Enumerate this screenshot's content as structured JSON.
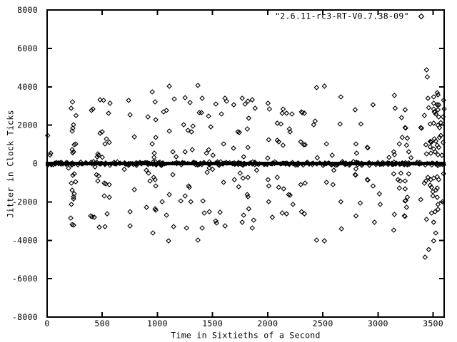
{
  "colors": {
    "background": "#ffffff",
    "foreground": "#000000"
  },
  "chart_data": {
    "type": "scatter",
    "title": "",
    "legend_label": "\"2.6.11-rc3-RT-V0.7.38-09\"",
    "legend_position": "top-right",
    "xlabel": "Time in Sixtieths of a Second",
    "ylabel": "Jitter in Clock Ticks",
    "xlim": [
      0,
      3600
    ],
    "ylim": [
      -8000,
      8000
    ],
    "x_ticks": [
      0,
      500,
      1000,
      1500,
      2000,
      2500,
      3000,
      3500
    ],
    "y_ticks": [
      -8000,
      -6000,
      -4000,
      -2000,
      0,
      2000,
      4000,
      6000,
      8000
    ],
    "grid": false,
    "marker": "open-diamond",
    "zero_band": {
      "y": 0,
      "x_range": [
        0,
        3600
      ],
      "approx_half_width": 150,
      "jitter_count": 400,
      "description": "extremely dense cluster of points at jitter ~0 forming a solid black band across the full time range"
    },
    "points": [
      [
        5,
        1460
      ],
      [
        26,
        440
      ],
      [
        32,
        540
      ],
      [
        194,
        -240
      ],
      [
        230,
        3210
      ],
      [
        218,
        2880
      ],
      [
        262,
        2500
      ],
      [
        239,
        2020
      ],
      [
        233,
        1840
      ],
      [
        227,
        1690
      ],
      [
        259,
        1020
      ],
      [
        246,
        980
      ],
      [
        227,
        720
      ],
      [
        240,
        610
      ],
      [
        232,
        560
      ],
      [
        233,
        -610
      ],
      [
        246,
        -540
      ],
      [
        220,
        -1020
      ],
      [
        259,
        -950
      ],
      [
        227,
        -1390
      ],
      [
        246,
        -1580
      ],
      [
        240,
        -1730
      ],
      [
        240,
        -1840
      ],
      [
        220,
        -2130
      ],
      [
        214,
        -2840
      ],
      [
        227,
        -3180
      ],
      [
        240,
        -3210
      ],
      [
        402,
        2770
      ],
      [
        415,
        2840
      ],
      [
        480,
        3320
      ],
      [
        512,
        3290
      ],
      [
        570,
        3140
      ],
      [
        557,
        2620
      ],
      [
        480,
        1580
      ],
      [
        499,
        1650
      ],
      [
        538,
        1280
      ],
      [
        525,
        1020
      ],
      [
        564,
        1100
      ],
      [
        460,
        500
      ],
      [
        454,
        350
      ],
      [
        500,
        330
      ],
      [
        434,
        -170
      ],
      [
        466,
        430
      ],
      [
        447,
        -580
      ],
      [
        467,
        -650
      ],
      [
        460,
        -910
      ],
      [
        518,
        -1020
      ],
      [
        531,
        -1060
      ],
      [
        564,
        -1100
      ],
      [
        518,
        -1690
      ],
      [
        564,
        -1760
      ],
      [
        395,
        -2730
      ],
      [
        408,
        -2770
      ],
      [
        428,
        -2800
      ],
      [
        544,
        -2620
      ],
      [
        473,
        -3320
      ],
      [
        525,
        -3290
      ],
      [
        739,
        3290
      ],
      [
        752,
        2540
      ],
      [
        791,
        1390
      ],
      [
        700,
        -300
      ],
      [
        791,
        -1360
      ],
      [
        752,
        -2510
      ],
      [
        752,
        -3250
      ],
      [
        953,
        3730
      ],
      [
        979,
        3210
      ],
      [
        914,
        2430
      ],
      [
        985,
        2280
      ],
      [
        985,
        1360
      ],
      [
        953,
        1020
      ],
      [
        972,
        540
      ],
      [
        970,
        320
      ],
      [
        900,
        -350
      ],
      [
        920,
        -500
      ],
      [
        933,
        -910
      ],
      [
        966,
        -720
      ],
      [
        979,
        -840
      ],
      [
        985,
        -1170
      ],
      [
        901,
        -2280
      ],
      [
        979,
        -2360
      ],
      [
        985,
        -2430
      ],
      [
        959,
        -3620
      ],
      [
        1108,
        4030
      ],
      [
        1153,
        3360
      ],
      [
        1082,
        2770
      ],
      [
        1056,
        2690
      ],
      [
        1108,
        1690
      ],
      [
        1140,
        610
      ],
      [
        1170,
        350
      ],
      [
        1043,
        -1990
      ],
      [
        1082,
        -2690
      ],
      [
        1108,
        -1620
      ],
      [
        1140,
        -580
      ],
      [
        1147,
        -3290
      ],
      [
        1101,
        -4030
      ],
      [
        1251,
        3430
      ],
      [
        1296,
        3180
      ],
      [
        1322,
        1950
      ],
      [
        1238,
        2020
      ],
      [
        1277,
        1730
      ],
      [
        1309,
        1650
      ],
      [
        1251,
        610
      ],
      [
        1316,
        720
      ],
      [
        1212,
        -1950
      ],
      [
        1251,
        -1690
      ],
      [
        1283,
        -1170
      ],
      [
        1290,
        -1240
      ],
      [
        1303,
        -1990
      ],
      [
        1264,
        -3360
      ],
      [
        1367,
        4070
      ],
      [
        1406,
        3400
      ],
      [
        1380,
        2650
      ],
      [
        1400,
        2650
      ],
      [
        1464,
        2470
      ],
      [
        1484,
        1910
      ],
      [
        1530,
        3100
      ],
      [
        1581,
        2580
      ],
      [
        1613,
        3400
      ],
      [
        1627,
        3250
      ],
      [
        1600,
        1020
      ],
      [
        1465,
        720
      ],
      [
        1504,
        430
      ],
      [
        1445,
        540
      ],
      [
        1470,
        -230
      ],
      [
        1500,
        -300
      ],
      [
        1367,
        -3990
      ],
      [
        1406,
        -3360
      ],
      [
        1413,
        -1950
      ],
      [
        1425,
        -2580
      ],
      [
        1451,
        -460
      ],
      [
        1471,
        -2510
      ],
      [
        1529,
        -2990
      ],
      [
        1536,
        -3100
      ],
      [
        1568,
        -2540
      ],
      [
        1600,
        -980
      ],
      [
        1613,
        -3250
      ],
      [
        1692,
        3060
      ],
      [
        1769,
        3400
      ],
      [
        1795,
        3100
      ],
      [
        1821,
        3250
      ],
      [
        1860,
        3320
      ],
      [
        1886,
        2880
      ],
      [
        1828,
        2360
      ],
      [
        1743,
        1620
      ],
      [
        1815,
        1800
      ],
      [
        1821,
        840
      ],
      [
        1690,
        800
      ],
      [
        1730,
        1650
      ],
      [
        1782,
        350
      ],
      [
        1698,
        -840
      ],
      [
        1750,
        -500
      ],
      [
        1776,
        -760
      ],
      [
        1821,
        -720
      ],
      [
        1737,
        -1210
      ],
      [
        1815,
        -1620
      ],
      [
        1821,
        -1730
      ],
      [
        1782,
        -2690
      ],
      [
        1769,
        -3060
      ],
      [
        1828,
        -2360
      ],
      [
        1873,
        -2950
      ],
      [
        1860,
        -3360
      ],
      [
        1900,
        -350
      ],
      [
        2003,
        3140
      ],
      [
        2016,
        2840
      ],
      [
        2140,
        2840
      ],
      [
        2132,
        2620
      ],
      [
        2171,
        2620
      ],
      [
        2220,
        2580
      ],
      [
        2120,
        2060
      ],
      [
        2087,
        2100
      ],
      [
        2197,
        1800
      ],
      [
        2203,
        1650
      ],
      [
        2009,
        1240
      ],
      [
        2087,
        1210
      ],
      [
        2100,
        1130
      ],
      [
        2139,
        950
      ],
      [
        2000,
        280
      ],
      [
        2003,
        -840
      ],
      [
        2010,
        -1170
      ],
      [
        2087,
        -720
      ],
      [
        2100,
        -1240
      ],
      [
        2145,
        -1320
      ],
      [
        2190,
        -1620
      ],
      [
        2203,
        -1650
      ],
      [
        2009,
        -1990
      ],
      [
        2042,
        -2800
      ],
      [
        2132,
        -2580
      ],
      [
        2171,
        -2620
      ],
      [
        2229,
        -2130
      ],
      [
        2307,
        2690
      ],
      [
        2313,
        2650
      ],
      [
        2333,
        2620
      ],
      [
        2300,
        1130
      ],
      [
        2326,
        980
      ],
      [
        2339,
        980
      ],
      [
        2450,
        300
      ],
      [
        2307,
        -2510
      ],
      [
        2333,
        -2620
      ],
      [
        2300,
        -1100
      ],
      [
        2339,
        -1020
      ],
      [
        2443,
        3960
      ],
      [
        2514,
        4030
      ],
      [
        2430,
        2210
      ],
      [
        2417,
        2020
      ],
      [
        2533,
        1020
      ],
      [
        2585,
        430
      ],
      [
        2443,
        -3990
      ],
      [
        2514,
        -4030
      ],
      [
        2533,
        -980
      ],
      [
        2592,
        -1100
      ],
      [
        2663,
        3470
      ],
      [
        2656,
        2060
      ],
      [
        2600,
        -350
      ],
      [
        2663,
        -1990
      ],
      [
        2669,
        -3400
      ],
      [
        2793,
        2800
      ],
      [
        2845,
        2060
      ],
      [
        2800,
        1020
      ],
      [
        2806,
        540
      ],
      [
        2903,
        840
      ],
      [
        2908,
        820
      ],
      [
        2955,
        3060
      ],
      [
        2793,
        -580
      ],
      [
        2798,
        -600
      ],
      [
        2800,
        -280
      ],
      [
        2903,
        -840
      ],
      [
        2908,
        -860
      ],
      [
        2800,
        -2730
      ],
      [
        2839,
        -2060
      ],
      [
        2955,
        -1170
      ],
      [
        3013,
        -1580
      ],
      [
        2968,
        -3060
      ],
      [
        3020,
        -2130
      ],
      [
        3149,
        3550
      ],
      [
        3156,
        2880
      ],
      [
        3246,
        2800
      ],
      [
        3214,
        2390
      ],
      [
        3246,
        1870
      ],
      [
        3251,
        1850
      ],
      [
        3220,
        1360
      ],
      [
        3266,
        1320
      ],
      [
        3194,
        1020
      ],
      [
        3259,
        950
      ],
      [
        3279,
        610
      ],
      [
        3143,
        610
      ],
      [
        3149,
        460
      ],
      [
        3100,
        320
      ],
      [
        3300,
        300
      ],
      [
        3143,
        -540
      ],
      [
        3208,
        -500
      ],
      [
        3279,
        -540
      ],
      [
        3181,
        -840
      ],
      [
        3201,
        -910
      ],
      [
        3246,
        -910
      ],
      [
        3194,
        -1280
      ],
      [
        3246,
        -1320
      ],
      [
        3266,
        -1760
      ],
      [
        3246,
        -1950
      ],
      [
        3251,
        -1930
      ],
      [
        3240,
        -2730
      ],
      [
        3245,
        -2750
      ],
      [
        3149,
        -2650
      ],
      [
        3259,
        -2280
      ],
      [
        3143,
        -3470
      ],
      [
        3395,
        1840
      ],
      [
        3388,
        1870
      ],
      [
        3440,
        4880
      ],
      [
        3447,
        4510
      ],
      [
        3453,
        3400
      ],
      [
        3505,
        3470
      ],
      [
        3537,
        3690
      ],
      [
        3544,
        3580
      ],
      [
        3460,
        2910
      ],
      [
        3505,
        3140
      ],
      [
        3537,
        3060
      ],
      [
        3551,
        3060
      ],
      [
        3505,
        2840
      ],
      [
        3544,
        2800
      ],
      [
        3421,
        2500
      ],
      [
        3511,
        2690
      ],
      [
        3516,
        2670
      ],
      [
        3524,
        2580
      ],
      [
        3551,
        2430
      ],
      [
        3473,
        2060
      ],
      [
        3505,
        2100
      ],
      [
        3544,
        2000
      ],
      [
        3558,
        1870
      ],
      [
        3479,
        1130
      ],
      [
        3484,
        1110
      ],
      [
        3474,
        1150
      ],
      [
        3511,
        1280
      ],
      [
        3524,
        1170
      ],
      [
        3557,
        1360
      ],
      [
        3434,
        980
      ],
      [
        3473,
        870
      ],
      [
        3505,
        760
      ],
      [
        3537,
        950
      ],
      [
        3551,
        840
      ],
      [
        3440,
        500
      ],
      [
        3479,
        540
      ],
      [
        3518,
        610
      ],
      [
        3544,
        460
      ],
      [
        3570,
        1460
      ],
      [
        3570,
        2130
      ],
      [
        3590,
        2430
      ],
      [
        3595,
        3300
      ],
      [
        3600,
        2840
      ],
      [
        3590,
        1100
      ],
      [
        3580,
        430
      ],
      [
        3388,
        -1880
      ],
      [
        3421,
        -1020
      ],
      [
        3434,
        -910
      ],
      [
        3453,
        -720
      ],
      [
        3473,
        -1130
      ],
      [
        3486,
        -1240
      ],
      [
        3479,
        -840
      ],
      [
        3505,
        -760
      ],
      [
        3537,
        -690
      ],
      [
        3551,
        -840
      ],
      [
        3498,
        -1470
      ],
      [
        3524,
        -1390
      ],
      [
        3537,
        -1280
      ],
      [
        3498,
        -1690
      ],
      [
        3537,
        -1760
      ],
      [
        3440,
        -2910
      ],
      [
        3505,
        -3060
      ],
      [
        3524,
        -3620
      ],
      [
        3505,
        -4030
      ],
      [
        3460,
        -4480
      ],
      [
        3427,
        -4880
      ],
      [
        3544,
        -2130
      ],
      [
        3544,
        -2390
      ],
      [
        3518,
        -2510
      ],
      [
        3486,
        -2580
      ],
      [
        3585,
        -1990
      ],
      [
        3595,
        -530
      ]
    ]
  }
}
